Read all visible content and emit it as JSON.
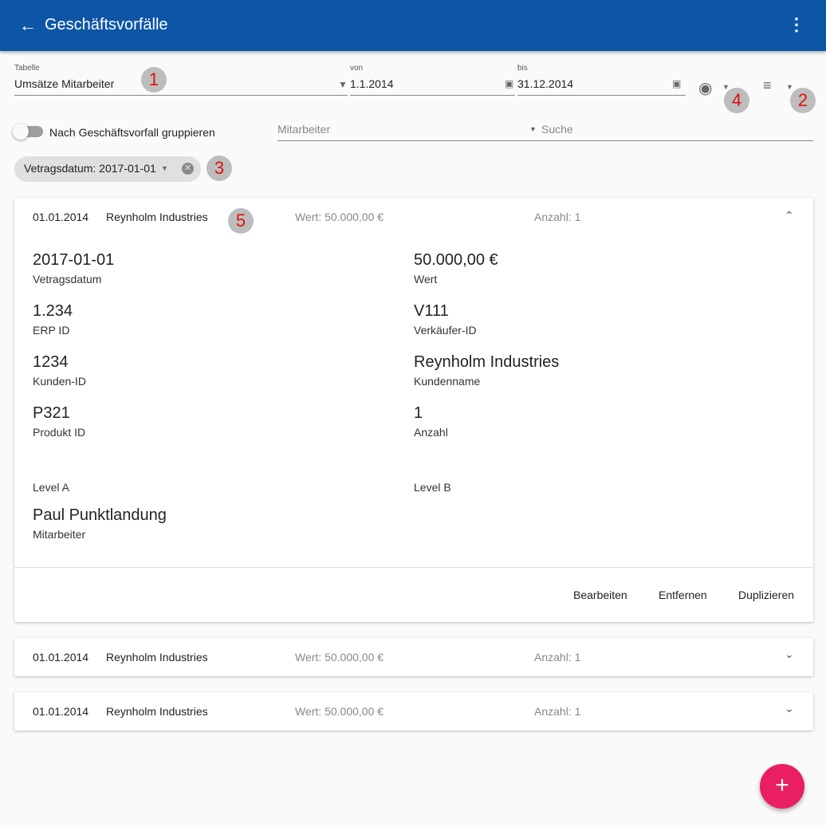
{
  "appbar": {
    "title": "Geschäftsvorfälle",
    "back_icon": "arrow-left-icon",
    "menu_icon": "more-vert-icon"
  },
  "filters": {
    "table_label": "Tabelle",
    "table_value": "Umsätze Mitarbeiter",
    "from_label": "von",
    "from_value": "1.1.2014",
    "to_label": "bis",
    "to_value": "31.12.2014",
    "group_toggle_label": "Nach Geschäftsvorfall gruppieren",
    "group_toggle_on": false,
    "employee_placeholder": "Mitarbeiter",
    "search_placeholder": "Suche"
  },
  "chip": {
    "label": "Vetragsdatum: 2017-01-01"
  },
  "annotations": [
    "1",
    "2",
    "3",
    "4",
    "5"
  ],
  "rows": [
    {
      "date": "01.01.2014",
      "company": "Reynholm Industries",
      "value": "Wert: 50.000,00 €",
      "count": "Anzahl: 1"
    },
    {
      "date": "01.01.2014",
      "company": "Reynholm Industries",
      "value": "Wert: 50.000,00 €",
      "count": "Anzahl: 1"
    },
    {
      "date": "01.01.2014",
      "company": "Reynholm Industries",
      "value": "Wert: 50.000,00 €",
      "count": "Anzahl: 1"
    }
  ],
  "details": [
    {
      "value": "2017-01-01",
      "label": "Vetragsdatum"
    },
    {
      "value": "50.000,00 €",
      "label": "Wert"
    },
    {
      "value": "1.234",
      "label": "ERP ID"
    },
    {
      "value": "V111",
      "label": "Verkäufer-ID"
    },
    {
      "value": "1234",
      "label": "Kunden-ID"
    },
    {
      "value": "Reynholm Industries",
      "label": "Kundenname"
    },
    {
      "value": "P321",
      "label": "Produkt ID"
    },
    {
      "value": "1",
      "label": "Anzahl"
    },
    {
      "value": "",
      "label": "Level A"
    },
    {
      "value": "",
      "label": "Level B"
    },
    {
      "value": "Paul Punktlandung",
      "label": "Mitarbeiter"
    }
  ],
  "actions": {
    "edit": "Bearbeiten",
    "remove": "Entfernen",
    "duplicate": "Duplizieren"
  },
  "fab": {
    "label": "+"
  },
  "colors": {
    "primary": "#0d56a6",
    "accent": "#e91e63"
  }
}
